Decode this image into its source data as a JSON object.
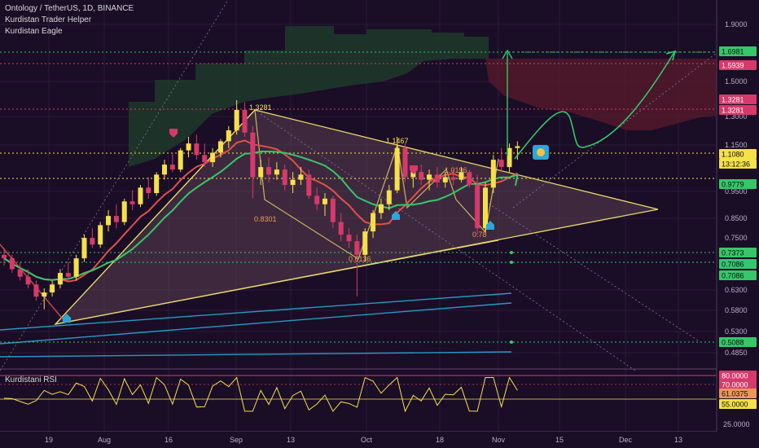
{
  "legend": {
    "symbol_line": "Ontology / TetherUS, 1D, BINANCE",
    "indicator1": "Kurdistan Trader Helper",
    "indicator2": "Kurdistan Eagle"
  },
  "rsi_title": "Kurdistani RSI",
  "colors": {
    "background": "#1a0d26",
    "bull": "#f5e04a",
    "bear": "#d63a6a",
    "triangle": "#e8d86a",
    "green_line": "#35c76a",
    "red_line": "#e0524a",
    "blue_line": "#2aa8d8",
    "cloud": "#1f3a2a",
    "red_zone": "#5a1a2c",
    "target": "#35c76a"
  },
  "chart_data": {
    "type": "candlestick",
    "price_axis": {
      "ticks": [
        "1.9000",
        "1.5000",
        "1.3000",
        "1.1500",
        "0.9500",
        "0.8500",
        "0.7500",
        "0.6300",
        "0.5800",
        "0.5300",
        "0.4850"
      ]
    },
    "time_axis": {
      "ticks": [
        "19",
        "Aug",
        "16",
        "Sep",
        "13",
        "Oct",
        "18",
        "Nov",
        "15",
        "Dec",
        "13"
      ]
    },
    "price_tags": [
      {
        "value": "1.6981",
        "kind": "green"
      },
      {
        "value": "1.5939",
        "kind": "red"
      },
      {
        "value": "1.3281",
        "kind": "red"
      },
      {
        "value": "1.3281",
        "kind": "red"
      },
      {
        "value": "1.1080",
        "kind": "current"
      },
      {
        "value": "13:12:36",
        "kind": "countdown"
      },
      {
        "value": "0.9779",
        "kind": "green"
      },
      {
        "value": "0.7373",
        "kind": "green"
      },
      {
        "value": "0.7086",
        "kind": "green"
      },
      {
        "value": "0.7086",
        "kind": "green"
      },
      {
        "value": "0.5088",
        "kind": "green"
      }
    ],
    "pivot_labels": [
      {
        "text": "1.3281"
      },
      {
        "text": "0.8301"
      },
      {
        "text": "1.1467"
      },
      {
        "text": "1.0196"
      },
      {
        "text": "0.78"
      },
      {
        "text": "0.6136"
      }
    ],
    "candles": [
      [
        0.72,
        0.74,
        0.69,
        0.71
      ],
      [
        0.71,
        0.72,
        0.67,
        0.68
      ],
      [
        0.68,
        0.7,
        0.65,
        0.66
      ],
      [
        0.66,
        0.68,
        0.63,
        0.64
      ],
      [
        0.64,
        0.65,
        0.6,
        0.61
      ],
      [
        0.61,
        0.63,
        0.58,
        0.62
      ],
      [
        0.62,
        0.65,
        0.61,
        0.64
      ],
      [
        0.64,
        0.68,
        0.63,
        0.67
      ],
      [
        0.67,
        0.7,
        0.65,
        0.66
      ],
      [
        0.66,
        0.72,
        0.65,
        0.71
      ],
      [
        0.71,
        0.78,
        0.7,
        0.77
      ],
      [
        0.77,
        0.8,
        0.74,
        0.75
      ],
      [
        0.75,
        0.82,
        0.74,
        0.81
      ],
      [
        0.81,
        0.86,
        0.79,
        0.84
      ],
      [
        0.84,
        0.88,
        0.8,
        0.82
      ],
      [
        0.82,
        0.9,
        0.81,
        0.89
      ],
      [
        0.89,
        0.93,
        0.86,
        0.88
      ],
      [
        0.88,
        0.95,
        0.87,
        0.94
      ],
      [
        0.94,
        0.98,
        0.9,
        0.92
      ],
      [
        0.92,
        1.0,
        0.91,
        0.99
      ],
      [
        0.99,
        1.05,
        0.97,
        1.03
      ],
      [
        1.03,
        1.08,
        1.0,
        1.01
      ],
      [
        1.01,
        1.1,
        1.0,
        1.09
      ],
      [
        1.09,
        1.15,
        1.06,
        1.12
      ],
      [
        1.12,
        1.16,
        1.05,
        1.07
      ],
      [
        1.07,
        1.12,
        1.02,
        1.04
      ],
      [
        1.04,
        1.1,
        1.02,
        1.08
      ],
      [
        1.08,
        1.14,
        1.06,
        1.13
      ],
      [
        1.13,
        1.2,
        1.1,
        1.18
      ],
      [
        1.18,
        1.33,
        1.16,
        1.28
      ],
      [
        1.28,
        1.32,
        1.15,
        1.17
      ],
      [
        1.17,
        1.2,
        0.9,
        0.98
      ],
      [
        0.98,
        1.05,
        0.95,
        1.02
      ],
      [
        1.02,
        1.06,
        0.96,
        0.99
      ],
      [
        0.99,
        1.04,
        0.97,
        1.01
      ],
      [
        1.01,
        1.03,
        0.93,
        0.95
      ],
      [
        0.95,
        1.0,
        0.92,
        0.97
      ],
      [
        0.97,
        1.02,
        0.95,
        0.99
      ],
      [
        0.99,
        1.01,
        0.9,
        0.91
      ],
      [
        0.91,
        0.94,
        0.86,
        0.88
      ],
      [
        0.88,
        0.92,
        0.84,
        0.9
      ],
      [
        0.9,
        0.91,
        0.8,
        0.82
      ],
      [
        0.82,
        0.85,
        0.76,
        0.78
      ],
      [
        0.78,
        0.8,
        0.74,
        0.76
      ],
      [
        0.76,
        0.78,
        0.61,
        0.72
      ],
      [
        0.72,
        0.8,
        0.7,
        0.79
      ],
      [
        0.79,
        0.86,
        0.77,
        0.85
      ],
      [
        0.85,
        0.9,
        0.83,
        0.88
      ],
      [
        0.88,
        0.95,
        0.86,
        0.93
      ],
      [
        0.93,
        1.15,
        0.92,
        1.1
      ],
      [
        1.1,
        1.12,
        0.96,
        0.98
      ],
      [
        0.98,
        1.02,
        0.94,
        1.0
      ],
      [
        1.0,
        1.03,
        0.95,
        0.97
      ],
      [
        0.97,
        1.01,
        0.93,
        0.99
      ],
      [
        0.99,
        1.02,
        0.94,
        0.96
      ],
      [
        0.96,
        1.0,
        0.94,
        0.98
      ],
      [
        0.98,
        1.01,
        0.95,
        0.97
      ],
      [
        0.97,
        1.02,
        0.96,
        1.0
      ],
      [
        1.0,
        1.01,
        0.94,
        0.95
      ],
      [
        0.95,
        0.99,
        0.78,
        0.8
      ],
      [
        0.8,
        0.96,
        0.79,
        0.94
      ],
      [
        0.94,
        1.07,
        0.92,
        1.05
      ],
      [
        1.05,
        1.1,
        1.0,
        1.02
      ],
      [
        1.02,
        1.12,
        1.0,
        1.1
      ],
      [
        1.1,
        1.13,
        1.05,
        1.108
      ]
    ],
    "rsi": {
      "levels": [
        "80.0000",
        "70.0000",
        "61.0375",
        "55.0000",
        "25.0000"
      ],
      "current": "61.0375"
    }
  }
}
